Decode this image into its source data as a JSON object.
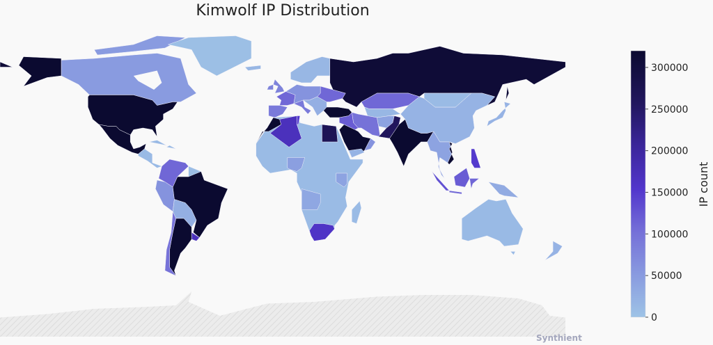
{
  "chart_data": {
    "type": "choropleth",
    "title": "Kimwolf IP Distribution",
    "projection": "equirectangular-like world map",
    "colorbar": {
      "title": "IP count",
      "range": [
        0,
        320000
      ],
      "ticks": [
        0,
        50000,
        100000,
        150000,
        200000,
        250000,
        300000
      ],
      "tick_labels": [
        "0",
        "50000",
        "100000",
        "150000",
        "200000",
        "250000",
        "300000"
      ]
    },
    "colorscale": [
      [
        0.0,
        "#9ec3e6"
      ],
      [
        0.15,
        "#8a9de0"
      ],
      [
        0.32,
        "#7570d8"
      ],
      [
        0.48,
        "#5236cc"
      ],
      [
        0.65,
        "#3a2598"
      ],
      [
        0.8,
        "#22175f"
      ],
      [
        1.0,
        "#0b0a30"
      ]
    ],
    "no_data_color": "#eeeeee",
    "regions": [
      {
        "id": "CAN",
        "value": 50000
      },
      {
        "id": "USA",
        "value": 320000
      },
      {
        "id": "MEX",
        "value": 320000
      },
      {
        "id": "GRL",
        "value": 5000
      },
      {
        "id": "CAM",
        "value": 12000
      },
      {
        "id": "COL-VEN",
        "value": 110000
      },
      {
        "id": "GUY",
        "value": 8000
      },
      {
        "id": "ECU-PER",
        "value": 60000
      },
      {
        "id": "BOL-PRY",
        "value": 25000
      },
      {
        "id": "BRA",
        "value": 320000
      },
      {
        "id": "ARG",
        "value": 320000
      },
      {
        "id": "CHL",
        "value": 100000
      },
      {
        "id": "URY",
        "value": 170000
      },
      {
        "id": "ESP",
        "value": 90000
      },
      {
        "id": "FRA",
        "value": 110000
      },
      {
        "id": "GBR",
        "value": 80000
      },
      {
        "id": "CEU",
        "value": 60000
      },
      {
        "id": "ITA",
        "value": 90000
      },
      {
        "id": "BLK",
        "value": 25000
      },
      {
        "id": "SCA",
        "value": 15000
      },
      {
        "id": "UKR",
        "value": 110000
      },
      {
        "id": "RUS",
        "value": 310000
      },
      {
        "id": "KAZ",
        "value": 110000
      },
      {
        "id": "CAS",
        "value": 15000
      },
      {
        "id": "TUR",
        "value": 320000
      },
      {
        "id": "IRN",
        "value": 100000
      },
      {
        "id": "IRQ-SYR",
        "value": 120000
      },
      {
        "id": "SAU",
        "value": 320000
      },
      {
        "id": "YEM",
        "value": 20000
      },
      {
        "id": "OMN",
        "value": 60000
      },
      {
        "id": "AFG",
        "value": 40000
      },
      {
        "id": "PAK",
        "value": 260000
      },
      {
        "id": "IND",
        "value": 320000
      },
      {
        "id": "CHN",
        "value": 20000
      },
      {
        "id": "MNG",
        "value": 10000
      },
      {
        "id": "SEA",
        "value": 40000
      },
      {
        "id": "VNM",
        "value": 320000
      },
      {
        "id": "SUM",
        "value": 130000
      },
      {
        "id": "JAV",
        "value": 110000
      },
      {
        "id": "BOR",
        "value": 120000
      },
      {
        "id": "PNG",
        "value": 30000
      },
      {
        "id": "PHL",
        "value": 150000
      },
      {
        "id": "JPN",
        "value": 20000
      },
      {
        "id": "AUS",
        "value": 12000
      },
      {
        "id": "NZL",
        "value": 20000
      },
      {
        "id": "AFR",
        "value": 10000
      },
      {
        "id": "MAR",
        "value": 320000
      },
      {
        "id": "DZA",
        "value": 170000
      },
      {
        "id": "TUN",
        "value": 150000
      },
      {
        "id": "EGY",
        "value": 270000
      },
      {
        "id": "ZAF",
        "value": 160000
      },
      {
        "id": "NGA",
        "value": 45000
      },
      {
        "id": "KEN",
        "value": 40000
      },
      {
        "id": "AGO",
        "value": 35000
      },
      {
        "id": "MDG",
        "value": 10000
      }
    ]
  },
  "watermark": "Synthient"
}
